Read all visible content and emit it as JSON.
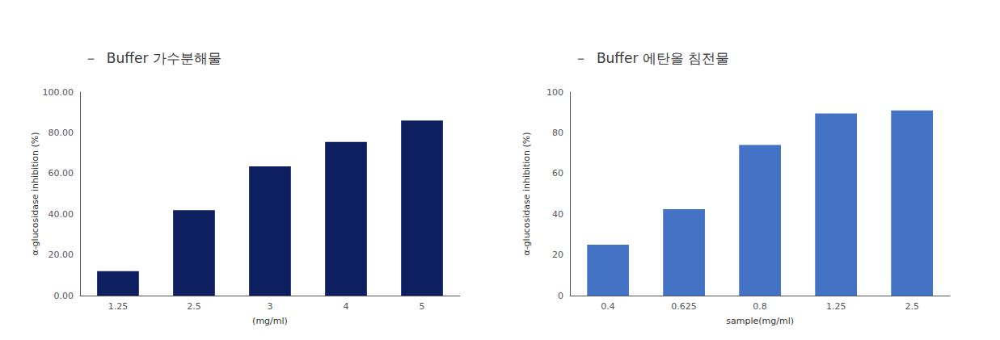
{
  "chart_data": [
    {
      "type": "bar",
      "title": "－  Buffer 가수분해물",
      "categories": [
        "1.25",
        "2.5",
        "3",
        "4",
        "5"
      ],
      "values": [
        12.0,
        42.0,
        63.5,
        75.5,
        86.0
      ],
      "color": "#0d1f5e",
      "xlabel": "(mg/ml)",
      "ylabel": "α-glucosidase inhibition (%)",
      "ylim": [
        0,
        100
      ],
      "yticks": [
        {
          "value": 0,
          "label": "0.00"
        },
        {
          "value": 20,
          "label": "20.00"
        },
        {
          "value": 40,
          "label": "40.00"
        },
        {
          "value": 60,
          "label": "60.00"
        },
        {
          "value": 80,
          "label": "80.00"
        },
        {
          "value": 100,
          "label": "100.00"
        }
      ],
      "grid": false
    },
    {
      "type": "bar",
      "title": "－  Buffer 에탄올 침전물",
      "categories": [
        "0.4",
        "0.625",
        "0.8",
        "1.25",
        "2.5"
      ],
      "values": [
        25.0,
        42.5,
        74.0,
        89.5,
        91.0
      ],
      "color": "#4472c4",
      "xlabel": "sample(mg/ml)",
      "ylabel": "α-glucosidase inhibition (%)",
      "ylim": [
        0,
        100
      ],
      "yticks": [
        0,
        20,
        40,
        60,
        80,
        100
      ],
      "grid": false
    }
  ]
}
